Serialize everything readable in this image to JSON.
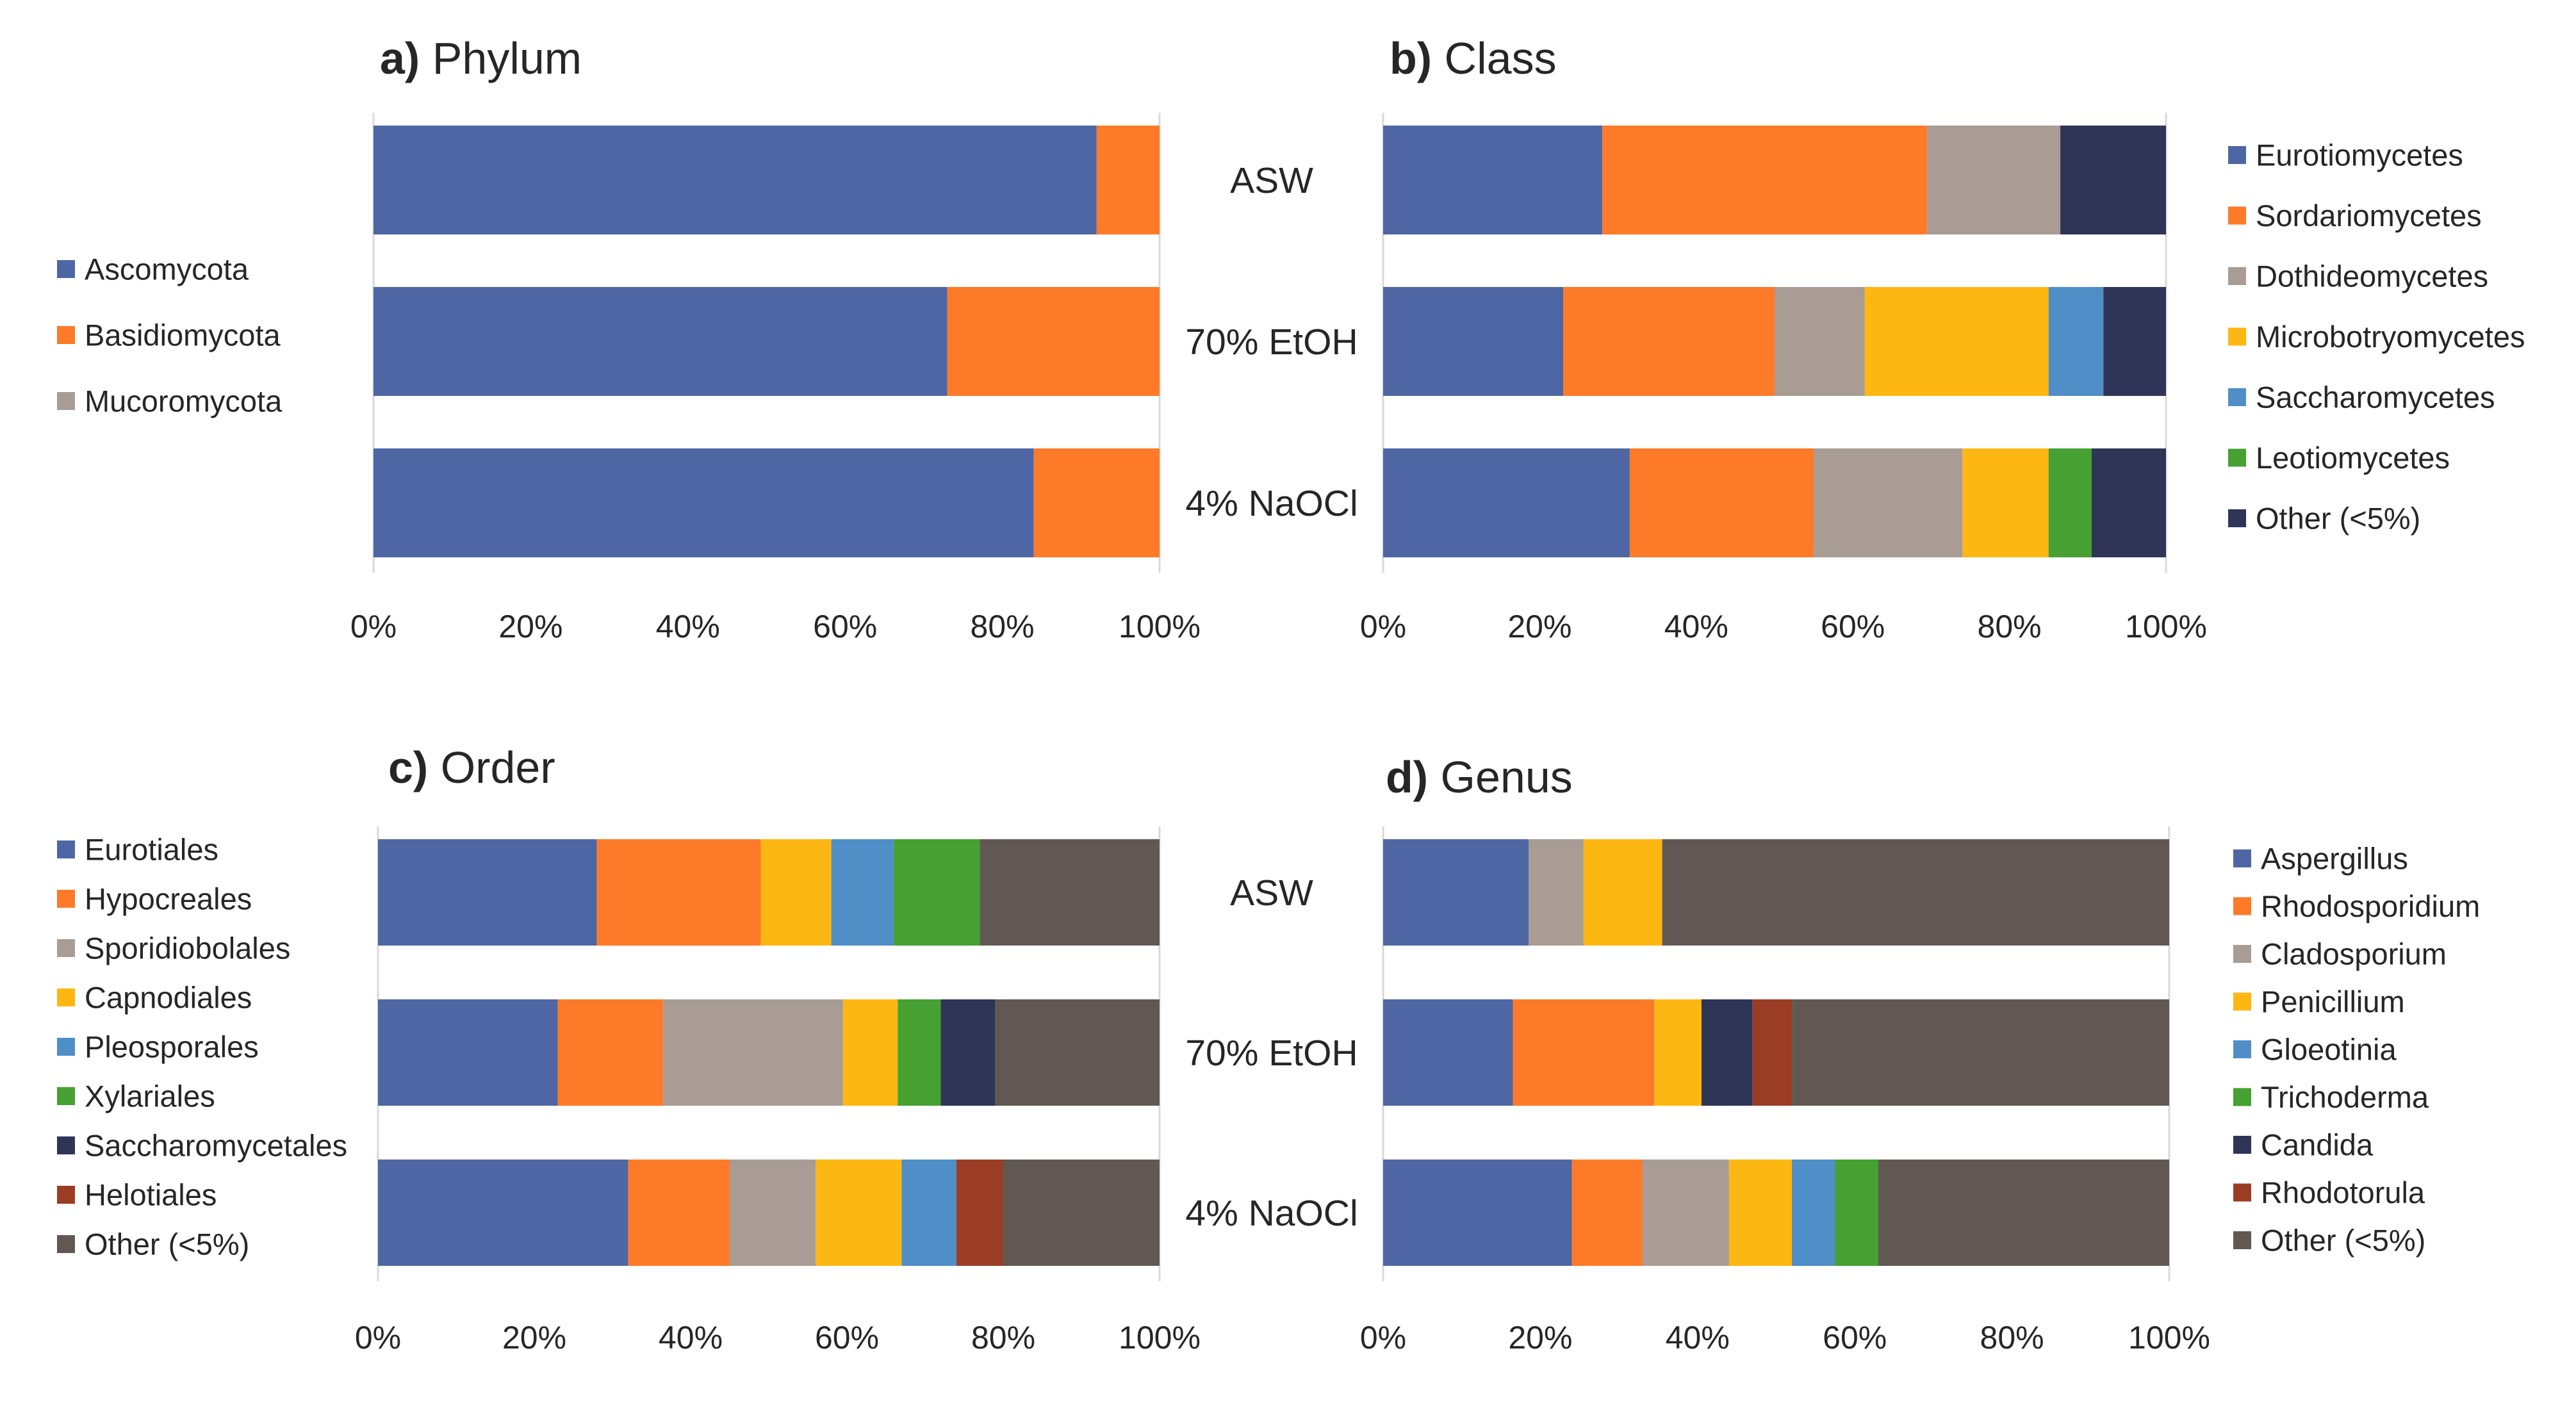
{
  "chart_data": [
    {
      "type": "bar",
      "orientation": "horizontal",
      "stacked": "percent",
      "panel_letter": "a)",
      "title": "Phylum",
      "categories": [
        "ASW",
        "70% EtOH",
        "4% NaOCl"
      ],
      "series": [
        {
          "name": "Ascomycota",
          "color": "#4e66a3",
          "values": [
            92,
            73,
            84
          ]
        },
        {
          "name": "Basidiomycota",
          "color": "#fd7a28",
          "values": [
            8,
            27,
            16
          ]
        },
        {
          "name": "Mucoromycota",
          "color": "#a89c95",
          "values": [
            0,
            0,
            0
          ]
        }
      ],
      "xticks": [
        "0%",
        "20%",
        "40%",
        "60%",
        "80%",
        "100%"
      ],
      "xlim": [
        0,
        100
      ],
      "legend_position": "left"
    },
    {
      "type": "bar",
      "orientation": "horizontal",
      "stacked": "percent",
      "panel_letter": "b)",
      "title": "Class",
      "categories": [
        "ASW",
        "70% EtOH",
        "4% NaOCl"
      ],
      "series": [
        {
          "name": "Eurotiomycetes",
          "color": "#4e66a3",
          "values": [
            28,
            23,
            31.5
          ]
        },
        {
          "name": "Sordariomycetes",
          "color": "#fd7a28",
          "values": [
            41.5,
            27,
            23.5
          ]
        },
        {
          "name": "Dothideomycetes",
          "color": "#a89c95",
          "values": [
            17,
            11.5,
            19
          ]
        },
        {
          "name": "Microbotryomycetes",
          "color": "#fdb713",
          "values": [
            0,
            23.5,
            11
          ]
        },
        {
          "name": "Saccharomycetes",
          "color": "#4f8ec6",
          "values": [
            0,
            7,
            0
          ]
        },
        {
          "name": "Leotiomycetes",
          "color": "#46a032",
          "values": [
            0,
            0,
            5.5
          ]
        },
        {
          "name": "Other (<5%)",
          "color": "#2e3557",
          "values": [
            13.5,
            8,
            9.5
          ]
        }
      ],
      "xticks": [
        "0%",
        "20%",
        "40%",
        "60%",
        "80%",
        "100%"
      ],
      "xlim": [
        0,
        100
      ],
      "legend_position": "right"
    },
    {
      "type": "bar",
      "orientation": "horizontal",
      "stacked": "percent",
      "panel_letter": "c)",
      "title": "Order",
      "categories": [
        "ASW",
        "70% EtOH",
        "4% NaOCl"
      ],
      "series": [
        {
          "name": "Eurotiales",
          "color": "#4e66a3",
          "values": [
            28,
            23,
            32
          ]
        },
        {
          "name": "Hypocreales",
          "color": "#fd7a28",
          "values": [
            21,
            13.5,
            13
          ]
        },
        {
          "name": "Sporidiobolales",
          "color": "#a89c95",
          "values": [
            0,
            23,
            11
          ]
        },
        {
          "name": "Capnodiales",
          "color": "#fdb713",
          "values": [
            9,
            7,
            11
          ]
        },
        {
          "name": "Pleosporales",
          "color": "#4f8ec6",
          "values": [
            8,
            0,
            7
          ]
        },
        {
          "name": "Xylariales",
          "color": "#46a032",
          "values": [
            11,
            5.5,
            0
          ]
        },
        {
          "name": "Saccharomycetales",
          "color": "#2e3557",
          "values": [
            0,
            7,
            0
          ]
        },
        {
          "name": "Helotiales",
          "color": "#9b3d24",
          "values": [
            0,
            0,
            6
          ]
        },
        {
          "name": "Other (<5%)",
          "color": "#625853",
          "values": [
            23,
            21,
            20
          ]
        }
      ],
      "xticks": [
        "0%",
        "20%",
        "40%",
        "60%",
        "80%",
        "100%"
      ],
      "xlim": [
        0,
        100
      ],
      "legend_position": "left"
    },
    {
      "type": "bar",
      "orientation": "horizontal",
      "stacked": "percent",
      "panel_letter": "d)",
      "title": "Genus",
      "categories": [
        "ASW",
        "70% EtOH",
        "4% NaOCl"
      ],
      "series": [
        {
          "name": "Aspergillus",
          "color": "#4e66a3",
          "values": [
            18.5,
            16.5,
            24
          ]
        },
        {
          "name": "Rhodosporidium",
          "color": "#fd7a28",
          "values": [
            0,
            18,
            9
          ]
        },
        {
          "name": "Cladosporium",
          "color": "#a89c95",
          "values": [
            7,
            0,
            11
          ]
        },
        {
          "name": "Penicillium",
          "color": "#fdb713",
          "values": [
            10,
            6,
            8
          ]
        },
        {
          "name": "Gloeotinia",
          "color": "#4f8ec6",
          "values": [
            0,
            0,
            5.5
          ]
        },
        {
          "name": "Trichoderma",
          "color": "#46a032",
          "values": [
            0,
            0,
            5.5
          ]
        },
        {
          "name": "Candida",
          "color": "#2e3557",
          "values": [
            0,
            6.5,
            0
          ]
        },
        {
          "name": "Rhodotorula",
          "color": "#9b3d24",
          "values": [
            0,
            5,
            0
          ]
        },
        {
          "name": "Other (<5%)",
          "color": "#625853",
          "values": [
            64.5,
            48,
            37
          ]
        }
      ],
      "xticks": [
        "0%",
        "20%",
        "40%",
        "60%",
        "80%",
        "100%"
      ],
      "xlim": [
        0,
        100
      ],
      "legend_position": "right"
    }
  ],
  "style": {
    "axis_color": "#d9d9d9",
    "text_color": "#262626"
  }
}
